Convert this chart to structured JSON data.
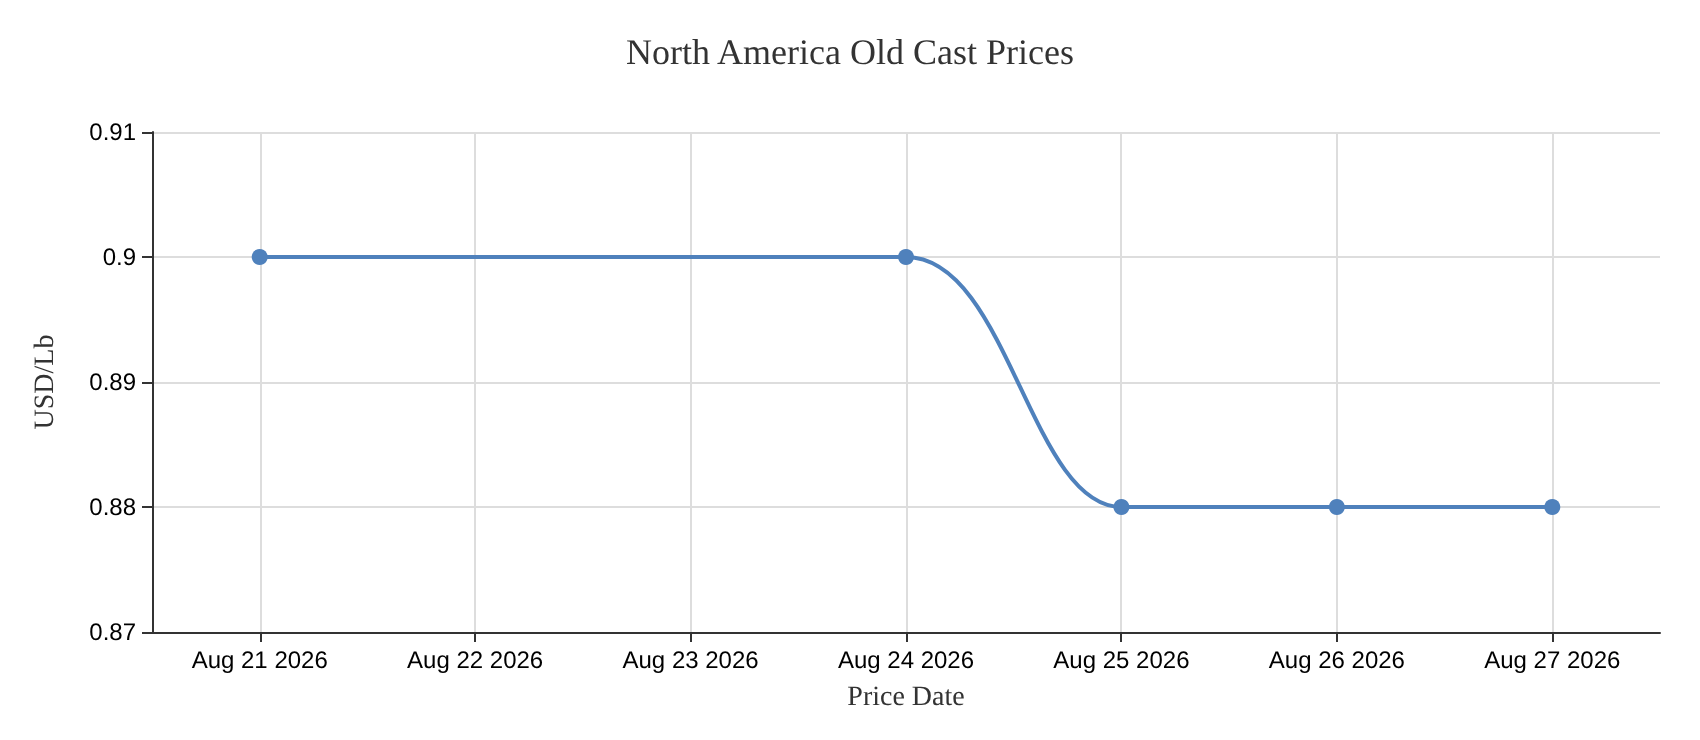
{
  "chart_data": {
    "type": "line",
    "title": "North America Old Cast Prices",
    "xlabel": "Price Date",
    "ylabel": "USD/Lb",
    "x": [
      "2026-08-21",
      "2026-08-24",
      "2026-08-25",
      "2026-08-26",
      "2026-08-27"
    ],
    "series": [
      {
        "color": "#4f81bc",
        "values": [
          0.9,
          0.9,
          0.88,
          0.88,
          0.88
        ]
      }
    ],
    "xlim": [
      "2026-08-20T12:00",
      "2026-08-27T12:00"
    ],
    "xticks": [
      {
        "value": "2026-08-21",
        "label": "Aug 21 2026"
      },
      {
        "value": "2026-08-22",
        "label": "Aug 22 2026"
      },
      {
        "value": "2026-08-23",
        "label": "Aug 23 2026"
      },
      {
        "value": "2026-08-24",
        "label": "Aug 24 2026"
      },
      {
        "value": "2026-08-25",
        "label": "Aug 25 2026"
      },
      {
        "value": "2026-08-26",
        "label": "Aug 26 2026"
      },
      {
        "value": "2026-08-27",
        "label": "Aug 27 2026"
      }
    ],
    "ylim": [
      0.87,
      0.91
    ],
    "yticks": [
      0.87,
      0.88,
      0.89,
      0.9,
      0.91
    ],
    "grid": true,
    "marker": "circle",
    "line_style": "solid"
  }
}
